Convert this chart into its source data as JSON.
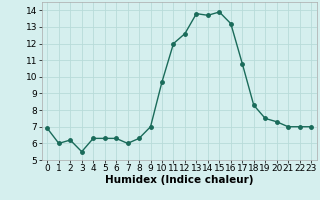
{
  "x": [
    0,
    1,
    2,
    3,
    4,
    5,
    6,
    7,
    8,
    9,
    10,
    11,
    12,
    13,
    14,
    15,
    16,
    17,
    18,
    19,
    20,
    21,
    22,
    23
  ],
  "y": [
    6.9,
    6.0,
    6.2,
    5.5,
    6.3,
    6.3,
    6.3,
    6.0,
    6.3,
    7.0,
    9.7,
    12.0,
    12.6,
    13.8,
    13.7,
    13.9,
    13.2,
    10.8,
    8.3,
    7.5,
    7.3,
    7.0,
    7.0,
    7.0
  ],
  "line_color": "#1a6b5a",
  "marker": "o",
  "markersize": 2.5,
  "linewidth": 1.0,
  "xlabel": "Humidex (Indice chaleur)",
  "ylim": [
    5,
    14.5
  ],
  "xlim": [
    -0.5,
    23.5
  ],
  "yticks": [
    5,
    6,
    7,
    8,
    9,
    10,
    11,
    12,
    13,
    14
  ],
  "xticks": [
    0,
    1,
    2,
    3,
    4,
    5,
    6,
    7,
    8,
    9,
    10,
    11,
    12,
    13,
    14,
    15,
    16,
    17,
    18,
    19,
    20,
    21,
    22,
    23
  ],
  "bg_color": "#d5efee",
  "grid_color": "#b8dbd9",
  "tick_label_fontsize": 6.5,
  "xlabel_fontsize": 7.5
}
